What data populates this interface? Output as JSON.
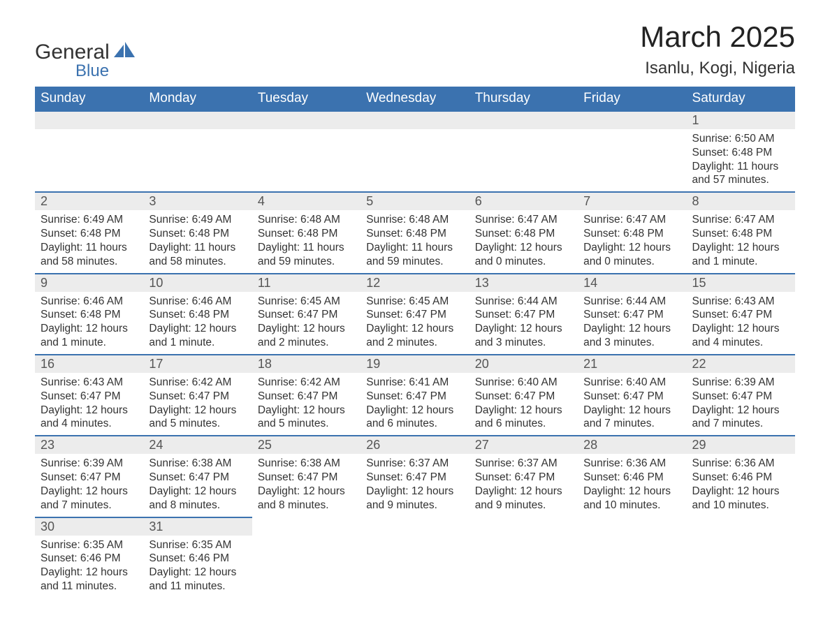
{
  "logo": {
    "word1": "General",
    "word2": "Blue"
  },
  "title": "March 2025",
  "subtitle": "Isanlu, Kogi, Nigeria",
  "colors": {
    "header_bg": "#3b72af",
    "header_text": "#ffffff",
    "daynum_bg": "#ececec",
    "row_border": "#3b72af",
    "page_bg": "#ffffff",
    "text": "#333333"
  },
  "day_headers": [
    "Sunday",
    "Monday",
    "Tuesday",
    "Wednesday",
    "Thursday",
    "Friday",
    "Saturday"
  ],
  "weeks": [
    [
      null,
      null,
      null,
      null,
      null,
      null,
      {
        "n": "1",
        "sunrise": "Sunrise: 6:50 AM",
        "sunset": "Sunset: 6:48 PM",
        "daylight": "Daylight: 11 hours and 57 minutes."
      }
    ],
    [
      {
        "n": "2",
        "sunrise": "Sunrise: 6:49 AM",
        "sunset": "Sunset: 6:48 PM",
        "daylight": "Daylight: 11 hours and 58 minutes."
      },
      {
        "n": "3",
        "sunrise": "Sunrise: 6:49 AM",
        "sunset": "Sunset: 6:48 PM",
        "daylight": "Daylight: 11 hours and 58 minutes."
      },
      {
        "n": "4",
        "sunrise": "Sunrise: 6:48 AM",
        "sunset": "Sunset: 6:48 PM",
        "daylight": "Daylight: 11 hours and 59 minutes."
      },
      {
        "n": "5",
        "sunrise": "Sunrise: 6:48 AM",
        "sunset": "Sunset: 6:48 PM",
        "daylight": "Daylight: 11 hours and 59 minutes."
      },
      {
        "n": "6",
        "sunrise": "Sunrise: 6:47 AM",
        "sunset": "Sunset: 6:48 PM",
        "daylight": "Daylight: 12 hours and 0 minutes."
      },
      {
        "n": "7",
        "sunrise": "Sunrise: 6:47 AM",
        "sunset": "Sunset: 6:48 PM",
        "daylight": "Daylight: 12 hours and 0 minutes."
      },
      {
        "n": "8",
        "sunrise": "Sunrise: 6:47 AM",
        "sunset": "Sunset: 6:48 PM",
        "daylight": "Daylight: 12 hours and 1 minute."
      }
    ],
    [
      {
        "n": "9",
        "sunrise": "Sunrise: 6:46 AM",
        "sunset": "Sunset: 6:48 PM",
        "daylight": "Daylight: 12 hours and 1 minute."
      },
      {
        "n": "10",
        "sunrise": "Sunrise: 6:46 AM",
        "sunset": "Sunset: 6:48 PM",
        "daylight": "Daylight: 12 hours and 1 minute."
      },
      {
        "n": "11",
        "sunrise": "Sunrise: 6:45 AM",
        "sunset": "Sunset: 6:47 PM",
        "daylight": "Daylight: 12 hours and 2 minutes."
      },
      {
        "n": "12",
        "sunrise": "Sunrise: 6:45 AM",
        "sunset": "Sunset: 6:47 PM",
        "daylight": "Daylight: 12 hours and 2 minutes."
      },
      {
        "n": "13",
        "sunrise": "Sunrise: 6:44 AM",
        "sunset": "Sunset: 6:47 PM",
        "daylight": "Daylight: 12 hours and 3 minutes."
      },
      {
        "n": "14",
        "sunrise": "Sunrise: 6:44 AM",
        "sunset": "Sunset: 6:47 PM",
        "daylight": "Daylight: 12 hours and 3 minutes."
      },
      {
        "n": "15",
        "sunrise": "Sunrise: 6:43 AM",
        "sunset": "Sunset: 6:47 PM",
        "daylight": "Daylight: 12 hours and 4 minutes."
      }
    ],
    [
      {
        "n": "16",
        "sunrise": "Sunrise: 6:43 AM",
        "sunset": "Sunset: 6:47 PM",
        "daylight": "Daylight: 12 hours and 4 minutes."
      },
      {
        "n": "17",
        "sunrise": "Sunrise: 6:42 AM",
        "sunset": "Sunset: 6:47 PM",
        "daylight": "Daylight: 12 hours and 5 minutes."
      },
      {
        "n": "18",
        "sunrise": "Sunrise: 6:42 AM",
        "sunset": "Sunset: 6:47 PM",
        "daylight": "Daylight: 12 hours and 5 minutes."
      },
      {
        "n": "19",
        "sunrise": "Sunrise: 6:41 AM",
        "sunset": "Sunset: 6:47 PM",
        "daylight": "Daylight: 12 hours and 6 minutes."
      },
      {
        "n": "20",
        "sunrise": "Sunrise: 6:40 AM",
        "sunset": "Sunset: 6:47 PM",
        "daylight": "Daylight: 12 hours and 6 minutes."
      },
      {
        "n": "21",
        "sunrise": "Sunrise: 6:40 AM",
        "sunset": "Sunset: 6:47 PM",
        "daylight": "Daylight: 12 hours and 7 minutes."
      },
      {
        "n": "22",
        "sunrise": "Sunrise: 6:39 AM",
        "sunset": "Sunset: 6:47 PM",
        "daylight": "Daylight: 12 hours and 7 minutes."
      }
    ],
    [
      {
        "n": "23",
        "sunrise": "Sunrise: 6:39 AM",
        "sunset": "Sunset: 6:47 PM",
        "daylight": "Daylight: 12 hours and 7 minutes."
      },
      {
        "n": "24",
        "sunrise": "Sunrise: 6:38 AM",
        "sunset": "Sunset: 6:47 PM",
        "daylight": "Daylight: 12 hours and 8 minutes."
      },
      {
        "n": "25",
        "sunrise": "Sunrise: 6:38 AM",
        "sunset": "Sunset: 6:47 PM",
        "daylight": "Daylight: 12 hours and 8 minutes."
      },
      {
        "n": "26",
        "sunrise": "Sunrise: 6:37 AM",
        "sunset": "Sunset: 6:47 PM",
        "daylight": "Daylight: 12 hours and 9 minutes."
      },
      {
        "n": "27",
        "sunrise": "Sunrise: 6:37 AM",
        "sunset": "Sunset: 6:47 PM",
        "daylight": "Daylight: 12 hours and 9 minutes."
      },
      {
        "n": "28",
        "sunrise": "Sunrise: 6:36 AM",
        "sunset": "Sunset: 6:46 PM",
        "daylight": "Daylight: 12 hours and 10 minutes."
      },
      {
        "n": "29",
        "sunrise": "Sunrise: 6:36 AM",
        "sunset": "Sunset: 6:46 PM",
        "daylight": "Daylight: 12 hours and 10 minutes."
      }
    ],
    [
      {
        "n": "30",
        "sunrise": "Sunrise: 6:35 AM",
        "sunset": "Sunset: 6:46 PM",
        "daylight": "Daylight: 12 hours and 11 minutes."
      },
      {
        "n": "31",
        "sunrise": "Sunrise: 6:35 AM",
        "sunset": "Sunset: 6:46 PM",
        "daylight": "Daylight: 12 hours and 11 minutes."
      },
      null,
      null,
      null,
      null,
      null
    ]
  ]
}
